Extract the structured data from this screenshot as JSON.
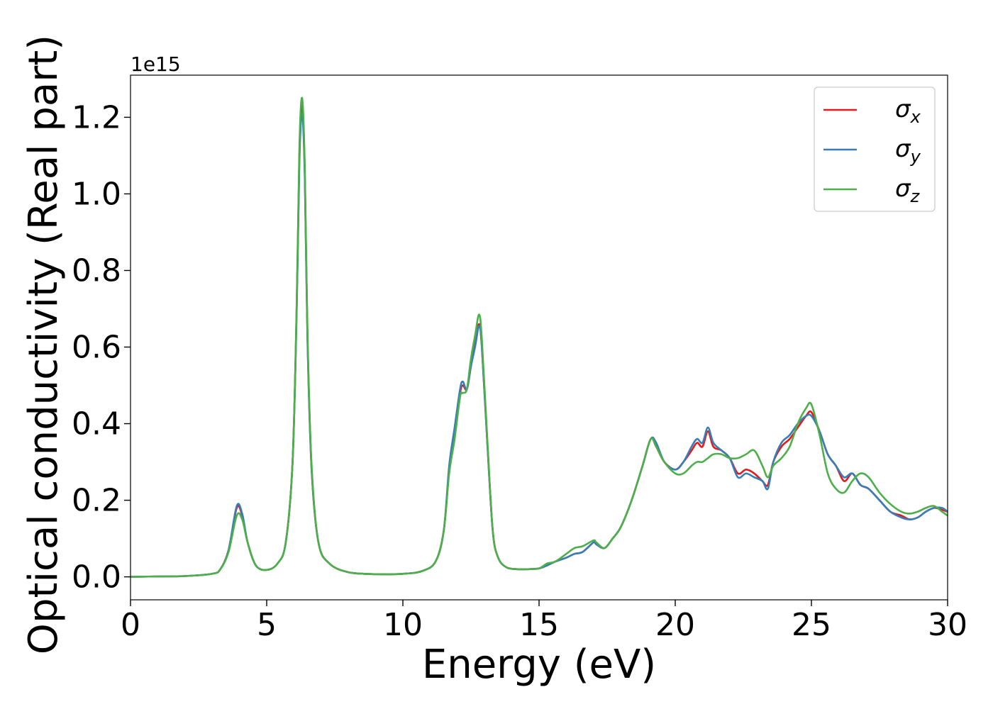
{
  "chart_data": {
    "type": "line",
    "xlabel": "Energy (eV)",
    "ylabel": "Optical conductivity (Real part)",
    "y_offset_label": "1e15",
    "xlim": [
      0,
      30
    ],
    "ylim": [
      -0.06,
      1.31
    ],
    "x_ticks": [
      0,
      5,
      10,
      15,
      20,
      25,
      30
    ],
    "x_tick_labels": [
      "0",
      "5",
      "10",
      "15",
      "20",
      "25",
      "30"
    ],
    "y_ticks": [
      0.0,
      0.2,
      0.4,
      0.6,
      0.8,
      1.0,
      1.2
    ],
    "y_tick_labels": [
      "0.0",
      "0.2",
      "0.4",
      "0.6",
      "0.8",
      "1.0",
      "1.2"
    ],
    "legend_position": "top-right",
    "grid": false,
    "series": [
      {
        "name": "σx",
        "symbol": "σ",
        "subscript": "x",
        "color": "#e41a1c",
        "x": [
          0,
          1,
          2,
          3,
          3.3,
          3.6,
          3.9,
          4.1,
          4.3,
          4.6,
          5.0,
          5.4,
          5.7,
          5.95,
          6.1,
          6.2,
          6.3,
          6.4,
          6.5,
          6.65,
          6.9,
          7.3,
          8,
          9,
          10,
          10.7,
          11.2,
          11.5,
          11.7,
          11.9,
          12.1,
          12.2,
          12.35,
          12.5,
          12.65,
          12.8,
          12.9,
          13.1,
          13.3,
          13.5,
          13.8,
          14.2,
          14.6,
          15,
          15.3,
          15.6,
          16,
          16.3,
          16.6,
          17.0,
          17.1,
          17.4,
          17.7,
          18,
          18.4,
          18.8,
          19.1,
          19.3,
          19.6,
          20,
          20.3,
          20.6,
          20.8,
          21.0,
          21.2,
          21.4,
          21.7,
          22,
          22.3,
          22.6,
          22.9,
          23.2,
          23.4,
          23.6,
          23.9,
          24.2,
          24.5,
          24.8,
          25.0,
          25.3,
          25.6,
          25.9,
          26.2,
          26.5,
          26.8,
          27.1,
          27.5,
          27.9,
          28.3,
          28.6,
          28.9,
          29.2,
          29.5,
          29.8,
          30
        ],
        "y": [
          0.0,
          0.001,
          0.002,
          0.008,
          0.02,
          0.07,
          0.18,
          0.16,
          0.09,
          0.03,
          0.018,
          0.035,
          0.09,
          0.3,
          0.7,
          1.1,
          1.23,
          1.05,
          0.62,
          0.28,
          0.09,
          0.035,
          0.012,
          0.007,
          0.008,
          0.015,
          0.04,
          0.12,
          0.28,
          0.38,
          0.48,
          0.5,
          0.49,
          0.55,
          0.61,
          0.66,
          0.6,
          0.35,
          0.12,
          0.05,
          0.025,
          0.02,
          0.02,
          0.022,
          0.03,
          0.04,
          0.05,
          0.06,
          0.065,
          0.09,
          0.085,
          0.075,
          0.1,
          0.13,
          0.2,
          0.29,
          0.36,
          0.34,
          0.3,
          0.28,
          0.3,
          0.33,
          0.35,
          0.34,
          0.38,
          0.34,
          0.33,
          0.31,
          0.27,
          0.28,
          0.27,
          0.25,
          0.24,
          0.3,
          0.34,
          0.36,
          0.39,
          0.42,
          0.43,
          0.38,
          0.32,
          0.29,
          0.25,
          0.27,
          0.24,
          0.23,
          0.2,
          0.17,
          0.16,
          0.15,
          0.155,
          0.17,
          0.18,
          0.175,
          0.17
        ]
      },
      {
        "name": "σy",
        "symbol": "σ",
        "subscript": "y",
        "color": "#377eb8",
        "x": [
          0,
          1,
          2,
          3,
          3.3,
          3.6,
          3.9,
          4.1,
          4.3,
          4.6,
          5.0,
          5.4,
          5.7,
          5.95,
          6.1,
          6.2,
          6.3,
          6.4,
          6.5,
          6.65,
          6.9,
          7.3,
          8,
          9,
          10,
          10.7,
          11.2,
          11.5,
          11.7,
          11.9,
          12.1,
          12.2,
          12.35,
          12.5,
          12.65,
          12.8,
          12.9,
          13.1,
          13.3,
          13.5,
          13.8,
          14.2,
          14.6,
          15,
          15.3,
          15.6,
          16,
          16.3,
          16.6,
          17.0,
          17.1,
          17.4,
          17.7,
          18,
          18.4,
          18.8,
          19.1,
          19.3,
          19.6,
          20,
          20.3,
          20.6,
          20.8,
          21.0,
          21.2,
          21.4,
          21.7,
          22,
          22.3,
          22.6,
          22.9,
          23.2,
          23.4,
          23.6,
          23.9,
          24.2,
          24.5,
          24.8,
          25.0,
          25.3,
          25.6,
          25.9,
          26.2,
          26.5,
          26.8,
          27.1,
          27.5,
          27.9,
          28.3,
          28.6,
          28.9,
          29.2,
          29.5,
          29.8,
          30
        ],
        "y": [
          0.0,
          0.001,
          0.002,
          0.008,
          0.02,
          0.07,
          0.185,
          0.165,
          0.09,
          0.03,
          0.018,
          0.035,
          0.09,
          0.3,
          0.69,
          1.08,
          1.21,
          1.04,
          0.61,
          0.28,
          0.09,
          0.035,
          0.012,
          0.007,
          0.008,
          0.015,
          0.04,
          0.12,
          0.29,
          0.39,
          0.49,
          0.51,
          0.49,
          0.55,
          0.6,
          0.655,
          0.6,
          0.35,
          0.12,
          0.05,
          0.025,
          0.02,
          0.02,
          0.022,
          0.03,
          0.04,
          0.05,
          0.06,
          0.065,
          0.09,
          0.085,
          0.075,
          0.1,
          0.13,
          0.2,
          0.29,
          0.36,
          0.35,
          0.3,
          0.28,
          0.3,
          0.34,
          0.36,
          0.35,
          0.39,
          0.35,
          0.33,
          0.31,
          0.26,
          0.27,
          0.26,
          0.25,
          0.23,
          0.3,
          0.35,
          0.37,
          0.4,
          0.42,
          0.42,
          0.38,
          0.32,
          0.29,
          0.26,
          0.27,
          0.24,
          0.23,
          0.2,
          0.17,
          0.155,
          0.15,
          0.155,
          0.17,
          0.18,
          0.18,
          0.17
        ]
      },
      {
        "name": "σz",
        "symbol": "σ",
        "subscript": "z",
        "color": "#4daf4a",
        "x": [
          0,
          1,
          2,
          3,
          3.3,
          3.6,
          3.9,
          4.1,
          4.3,
          4.6,
          5.0,
          5.4,
          5.7,
          5.95,
          6.1,
          6.2,
          6.3,
          6.4,
          6.5,
          6.65,
          6.9,
          7.3,
          8,
          9,
          10,
          10.7,
          11.2,
          11.5,
          11.7,
          11.9,
          12.1,
          12.2,
          12.35,
          12.5,
          12.65,
          12.8,
          12.9,
          13.1,
          13.3,
          13.5,
          13.8,
          14.2,
          14.6,
          15,
          15.3,
          15.6,
          16,
          16.3,
          16.6,
          17.0,
          17.1,
          17.4,
          17.7,
          18,
          18.4,
          18.8,
          19.1,
          19.3,
          19.6,
          20,
          20.3,
          20.6,
          20.8,
          21.0,
          21.2,
          21.4,
          21.7,
          22,
          22.3,
          22.6,
          22.9,
          23.2,
          23.4,
          23.6,
          23.9,
          24.2,
          24.5,
          24.8,
          25.0,
          25.3,
          25.6,
          25.9,
          26.2,
          26.5,
          26.8,
          27.1,
          27.5,
          27.9,
          28.3,
          28.6,
          28.9,
          29.2,
          29.5,
          29.8,
          30
        ],
        "y": [
          0.0,
          0.001,
          0.002,
          0.008,
          0.02,
          0.065,
          0.16,
          0.15,
          0.09,
          0.03,
          0.018,
          0.035,
          0.09,
          0.3,
          0.71,
          1.12,
          1.25,
          1.07,
          0.63,
          0.29,
          0.09,
          0.035,
          0.012,
          0.007,
          0.008,
          0.015,
          0.04,
          0.12,
          0.27,
          0.36,
          0.47,
          0.48,
          0.49,
          0.57,
          0.63,
          0.685,
          0.62,
          0.36,
          0.12,
          0.05,
          0.025,
          0.02,
          0.02,
          0.022,
          0.035,
          0.04,
          0.06,
          0.075,
          0.08,
          0.095,
          0.09,
          0.075,
          0.1,
          0.13,
          0.2,
          0.29,
          0.36,
          0.34,
          0.3,
          0.27,
          0.27,
          0.29,
          0.3,
          0.3,
          0.31,
          0.32,
          0.32,
          0.31,
          0.31,
          0.32,
          0.33,
          0.29,
          0.26,
          0.29,
          0.31,
          0.34,
          0.4,
          0.44,
          0.45,
          0.37,
          0.27,
          0.23,
          0.22,
          0.25,
          0.27,
          0.26,
          0.22,
          0.19,
          0.17,
          0.165,
          0.17,
          0.18,
          0.185,
          0.17,
          0.16
        ]
      }
    ]
  }
}
